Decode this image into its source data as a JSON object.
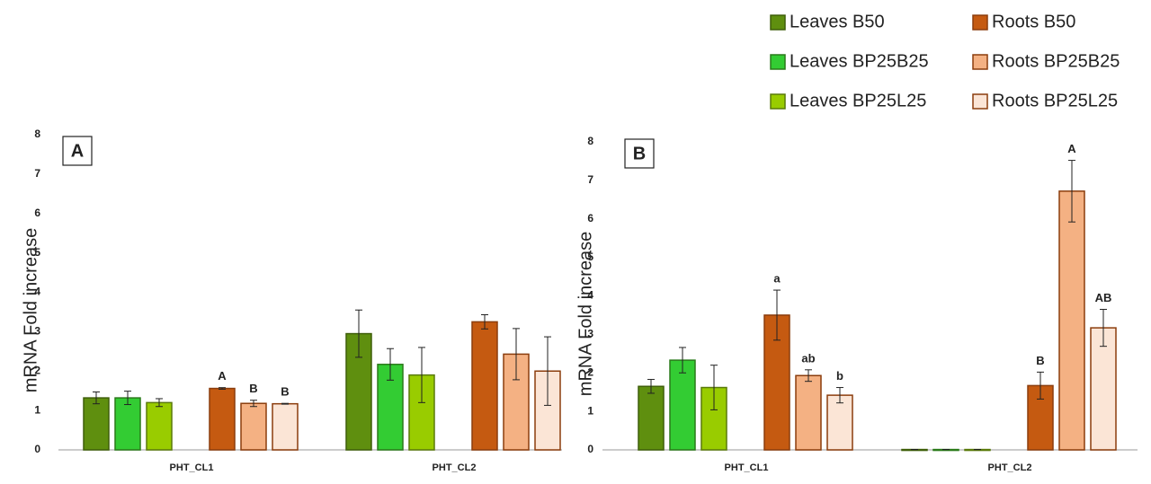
{
  "chart_data": [
    {
      "type": "bar",
      "title": "A",
      "y_label": "mRNA Fold increase",
      "categories": [
        "PHT_CL1",
        "PHT_CL2"
      ],
      "ylim": [
        0,
        8
      ],
      "yticks": [
        0,
        1,
        2,
        3,
        4,
        5,
        6,
        7,
        8
      ],
      "series": [
        {
          "name": "Leaves B50",
          "color": "#5f8f0f",
          "edgecolor": "#3f5f0a",
          "values": [
            1.32,
            2.95
          ],
          "errors": [
            0.15,
            0.6
          ]
        },
        {
          "name": "Leaves BP25B25",
          "color": "#33cc33",
          "edgecolor": "#2a7a1a",
          "values": [
            1.32,
            2.17
          ],
          "errors": [
            0.17,
            0.4
          ]
        },
        {
          "name": "Leaves BP25L25",
          "color": "#99cc00",
          "edgecolor": "#5a7a0a",
          "values": [
            1.2,
            1.9
          ],
          "errors": [
            0.1,
            0.7
          ]
        },
        {
          "name": "Roots B50",
          "color": "#c55a11",
          "edgecolor": "#8b3d0d",
          "values": [
            1.56,
            3.25
          ],
          "errors": [
            0.02,
            0.18
          ],
          "annotations": [
            "A",
            null
          ]
        },
        {
          "name": "Roots BP25B25",
          "color": "#f4b183",
          "edgecolor": "#8b3d0d",
          "values": [
            1.18,
            2.43
          ],
          "errors": [
            0.08,
            0.65
          ],
          "annotations": [
            "B",
            null
          ]
        },
        {
          "name": "Roots BP25L25",
          "color": "#fbe5d6",
          "edgecolor": "#8b3d0d",
          "values": [
            1.17,
            2.0
          ],
          "errors": [
            0.01,
            0.87
          ],
          "annotations": [
            "B",
            null
          ]
        }
      ]
    },
    {
      "type": "bar",
      "title": "B",
      "y_label": "mRNA Fold increase",
      "categories": [
        "PHT_CL1",
        "PHT_CL2"
      ],
      "ylim": [
        0,
        8
      ],
      "yticks": [
        0,
        1,
        2,
        3,
        4,
        5,
        6,
        7,
        8
      ],
      "series": [
        {
          "values": [
            1.65,
            0.01
          ],
          "errors": [
            0.18,
            0
          ]
        },
        {
          "values": [
            2.33,
            0.01
          ],
          "errors": [
            0.33,
            0
          ]
        },
        {
          "values": [
            1.62,
            0.01
          ],
          "errors": [
            0.58,
            0
          ]
        },
        {
          "values": [
            3.5,
            1.67
          ],
          "errors": [
            0.65,
            0.35
          ],
          "annotations": [
            "a",
            "B"
          ]
        },
        {
          "values": [
            1.93,
            6.72
          ],
          "errors": [
            0.15,
            0.8
          ],
          "annotations": [
            "ab",
            "A"
          ]
        },
        {
          "values": [
            1.42,
            3.17
          ],
          "errors": [
            0.2,
            0.48
          ],
          "annotations": [
            "b",
            "AB"
          ]
        }
      ]
    }
  ]
}
